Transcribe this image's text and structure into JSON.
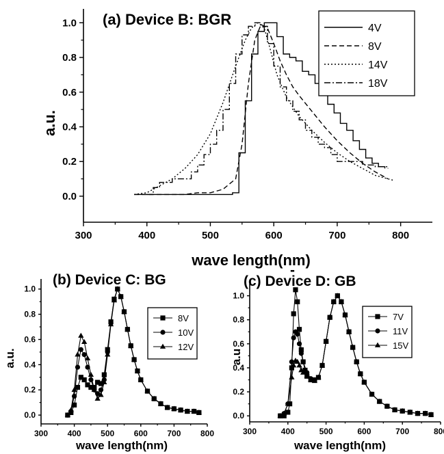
{
  "chart_data": [
    {
      "id": "a",
      "type": "line",
      "title": "(a)  Device B: BGR",
      "xlabel": "wave length(nm)",
      "ylabel": "a.u.",
      "xlim": [
        300,
        850
      ],
      "ylim": [
        -0.15,
        1.08
      ],
      "xticks": [
        300,
        400,
        500,
        600,
        700,
        800
      ],
      "yticks": [
        0.0,
        0.2,
        0.4,
        0.6,
        0.8,
        1.0
      ],
      "xtick_labels": [
        "300",
        "400",
        "500",
        "600",
        "700",
        "800"
      ],
      "ytick_labels": [
        "0.0",
        "0.2",
        "0.4",
        "0.6",
        "0.8",
        "1.0"
      ],
      "legend_position": "top-right",
      "series": [
        {
          "name": "4V",
          "dash": "solid",
          "step": true,
          "x": [
            380,
            400,
            420,
            440,
            460,
            480,
            500,
            520,
            535,
            545,
            555,
            565,
            575,
            585,
            595,
            605,
            615,
            625,
            635,
            645,
            655,
            665,
            675,
            685,
            695,
            705,
            715,
            725,
            735,
            745,
            755,
            765,
            775
          ],
          "y": [
            0.01,
            0.01,
            0.01,
            0.01,
            0.01,
            0.01,
            0.01,
            0.01,
            0.02,
            0.25,
            0.55,
            0.82,
            0.95,
            1.0,
            1.0,
            0.92,
            0.82,
            0.8,
            0.78,
            0.72,
            0.7,
            0.65,
            0.58,
            0.53,
            0.48,
            0.42,
            0.38,
            0.32,
            0.27,
            0.22,
            0.19,
            0.17,
            0.16
          ]
        },
        {
          "name": "8V",
          "dash": "dashed",
          "x": [
            380,
            400,
            420,
            440,
            460,
            480,
            500,
            520,
            540,
            550,
            560,
            570,
            580,
            590,
            600,
            610,
            620,
            630,
            640,
            660,
            680,
            700,
            720,
            740,
            760,
            780
          ],
          "y": [
            0.01,
            0.01,
            0.01,
            0.01,
            0.01,
            0.02,
            0.02,
            0.04,
            0.1,
            0.3,
            0.65,
            0.9,
            0.99,
            0.97,
            0.88,
            0.78,
            0.7,
            0.63,
            0.58,
            0.49,
            0.4,
            0.32,
            0.25,
            0.19,
            0.14,
            0.1
          ]
        },
        {
          "name": "14V",
          "dash": "dotted",
          "x": [
            380,
            400,
            420,
            440,
            460,
            480,
            500,
            520,
            540,
            555,
            565,
            575,
            585,
            595,
            605,
            620,
            640,
            660,
            680,
            700,
            720,
            740,
            760,
            790
          ],
          "y": [
            0.01,
            0.02,
            0.06,
            0.1,
            0.16,
            0.24,
            0.36,
            0.54,
            0.75,
            0.9,
            0.97,
            1.0,
            0.97,
            0.84,
            0.7,
            0.57,
            0.46,
            0.38,
            0.31,
            0.25,
            0.2,
            0.16,
            0.12,
            0.09
          ]
        },
        {
          "name": "18V",
          "dash": "dashdot",
          "step": true,
          "x": [
            400,
            410,
            420,
            430,
            440,
            450,
            460,
            470,
            480,
            490,
            500,
            510,
            520,
            530,
            540,
            550,
            560,
            570,
            580,
            590,
            600,
            610,
            620,
            630,
            640,
            650,
            660,
            670,
            680,
            690,
            700,
            720,
            740,
            760,
            780
          ],
          "y": [
            0.01,
            0.05,
            0.08,
            0.08,
            0.1,
            0.1,
            0.1,
            0.14,
            0.18,
            0.24,
            0.3,
            0.38,
            0.5,
            0.65,
            0.82,
            0.93,
            0.98,
            1.0,
            0.98,
            0.88,
            0.75,
            0.63,
            0.55,
            0.49,
            0.44,
            0.38,
            0.34,
            0.3,
            0.28,
            0.24,
            0.2,
            0.2,
            0.18,
            0.17,
            0.16
          ]
        }
      ]
    },
    {
      "id": "b",
      "type": "line",
      "title": "(b) Device C: BG",
      "xlabel": "wave length(nm)",
      "ylabel": "a.u.",
      "xlim": [
        300,
        800
      ],
      "ylim": [
        -0.07,
        1.08
      ],
      "xticks": [
        300,
        400,
        500,
        600,
        700,
        800
      ],
      "yticks": [
        0.0,
        0.2,
        0.4,
        0.6,
        0.8,
        1.0
      ],
      "xtick_labels": [
        "300",
        "400",
        "500",
        "600",
        "700",
        "800"
      ],
      "ytick_labels": [
        "0.0",
        "0.2",
        "0.4",
        "0.6",
        "0.8",
        "1.0"
      ],
      "legend_position": "top-right",
      "series": [
        {
          "name": "8V",
          "marker": "square",
          "x": [
            380,
            390,
            400,
            410,
            420,
            430,
            440,
            450,
            460,
            470,
            480,
            490,
            500,
            510,
            520,
            530,
            540,
            550,
            560,
            570,
            580,
            590,
            600,
            620,
            640,
            660,
            680,
            700,
            720,
            740,
            760,
            775
          ],
          "y": [
            0.0,
            0.02,
            0.08,
            0.22,
            0.3,
            0.28,
            0.24,
            0.22,
            0.22,
            0.26,
            0.25,
            0.32,
            0.52,
            0.74,
            0.92,
            1.0,
            0.94,
            0.82,
            0.68,
            0.55,
            0.44,
            0.35,
            0.28,
            0.19,
            0.13,
            0.09,
            0.06,
            0.05,
            0.04,
            0.03,
            0.03,
            0.02
          ]
        },
        {
          "name": "10V",
          "marker": "circle",
          "x": [
            380,
            390,
            400,
            410,
            420,
            430,
            440,
            450,
            460,
            470,
            480,
            490,
            500,
            510,
            520,
            530,
            540,
            550,
            560,
            570,
            580,
            590,
            600,
            620,
            640,
            660,
            680,
            700,
            720,
            740,
            760,
            775
          ],
          "y": [
            0.0,
            0.03,
            0.15,
            0.38,
            0.52,
            0.48,
            0.38,
            0.28,
            0.2,
            0.17,
            0.2,
            0.28,
            0.5,
            0.73,
            0.92,
            1.0,
            0.94,
            0.82,
            0.68,
            0.55,
            0.44,
            0.35,
            0.28,
            0.19,
            0.13,
            0.09,
            0.06,
            0.05,
            0.04,
            0.03,
            0.03,
            0.02
          ]
        },
        {
          "name": "12V",
          "marker": "triangle",
          "x": [
            380,
            390,
            400,
            410,
            420,
            430,
            440,
            450,
            460,
            470,
            480,
            490,
            500,
            510,
            520,
            530,
            540,
            550,
            560,
            570,
            580,
            590,
            600,
            620,
            640,
            660,
            680,
            700,
            720,
            740,
            760,
            775
          ],
          "y": [
            0.0,
            0.04,
            0.2,
            0.48,
            0.63,
            0.58,
            0.45,
            0.32,
            0.2,
            0.13,
            0.16,
            0.26,
            0.48,
            0.72,
            0.91,
            1.0,
            0.94,
            0.82,
            0.68,
            0.55,
            0.44,
            0.35,
            0.28,
            0.19,
            0.13,
            0.09,
            0.06,
            0.05,
            0.04,
            0.03,
            0.03,
            0.02
          ]
        }
      ]
    },
    {
      "id": "c",
      "type": "line",
      "title": "(c)   Device D: GB",
      "title_mark": "-",
      "xlabel": "wave length(nm)",
      "ylabel": "a.u",
      "xlim": [
        300,
        800
      ],
      "ylim": [
        -0.05,
        1.1
      ],
      "xticks": [
        300,
        400,
        500,
        600,
        700,
        800
      ],
      "yticks": [
        0.0,
        0.2,
        0.4,
        0.6,
        0.8,
        1.0
      ],
      "xtick_labels": [
        "300",
        "400",
        "500",
        "600",
        "700",
        "800"
      ],
      "ytick_labels": [
        "0.0",
        "0.2",
        "0.4",
        "0.6",
        "0.8",
        "1.0"
      ],
      "legend_position": "top-right",
      "series": [
        {
          "name": "7V",
          "marker": "square",
          "x": [
            380,
            390,
            400,
            405,
            410,
            415,
            420,
            425,
            430,
            435,
            440,
            445,
            450,
            460,
            470,
            480,
            490,
            500,
            510,
            520,
            530,
            540,
            550,
            560,
            570,
            580,
            590,
            600,
            620,
            640,
            660,
            680,
            700,
            720,
            740,
            760,
            775
          ],
          "y": [
            0.0,
            0.0,
            0.03,
            0.1,
            0.4,
            0.85,
            1.05,
            0.95,
            0.72,
            0.55,
            0.45,
            0.38,
            0.33,
            0.3,
            0.3,
            0.32,
            0.42,
            0.62,
            0.82,
            0.95,
            1.0,
            0.95,
            0.84,
            0.7,
            0.57,
            0.45,
            0.35,
            0.28,
            0.18,
            0.12,
            0.08,
            0.05,
            0.04,
            0.03,
            0.02,
            0.02,
            0.01
          ]
        },
        {
          "name": "11V",
          "marker": "circle",
          "x": [
            380,
            390,
            400,
            410,
            415,
            420,
            425,
            430,
            435,
            440,
            450,
            460,
            470,
            480,
            490,
            500,
            510,
            520,
            530,
            540,
            550,
            560,
            570,
            580,
            590,
            600,
            620,
            640,
            660,
            680,
            700,
            720,
            740,
            760,
            775
          ],
          "y": [
            0.0,
            0.02,
            0.1,
            0.45,
            0.65,
            0.7,
            0.68,
            0.6,
            0.52,
            0.45,
            0.36,
            0.31,
            0.3,
            0.32,
            0.42,
            0.62,
            0.82,
            0.95,
            1.0,
            0.95,
            0.84,
            0.7,
            0.57,
            0.45,
            0.35,
            0.28,
            0.18,
            0.12,
            0.08,
            0.05,
            0.04,
            0.03,
            0.02,
            0.02,
            0.01
          ]
        },
        {
          "name": "15V",
          "marker": "triangle",
          "x": [
            380,
            390,
            400,
            410,
            415,
            420,
            425,
            430,
            435,
            440,
            450,
            460,
            470,
            480,
            490,
            500,
            510,
            520,
            530,
            540,
            550,
            560,
            570,
            580,
            590,
            600,
            620,
            640,
            660,
            680,
            700,
            720,
            740,
            760,
            775
          ],
          "y": [
            0.0,
            0.02,
            0.1,
            0.32,
            0.42,
            0.46,
            0.45,
            0.42,
            0.38,
            0.36,
            0.33,
            0.3,
            0.29,
            0.32,
            0.42,
            0.62,
            0.82,
            0.95,
            1.0,
            0.95,
            0.84,
            0.7,
            0.57,
            0.45,
            0.35,
            0.28,
            0.18,
            0.12,
            0.08,
            0.05,
            0.04,
            0.03,
            0.02,
            0.02,
            0.01
          ]
        }
      ]
    }
  ]
}
